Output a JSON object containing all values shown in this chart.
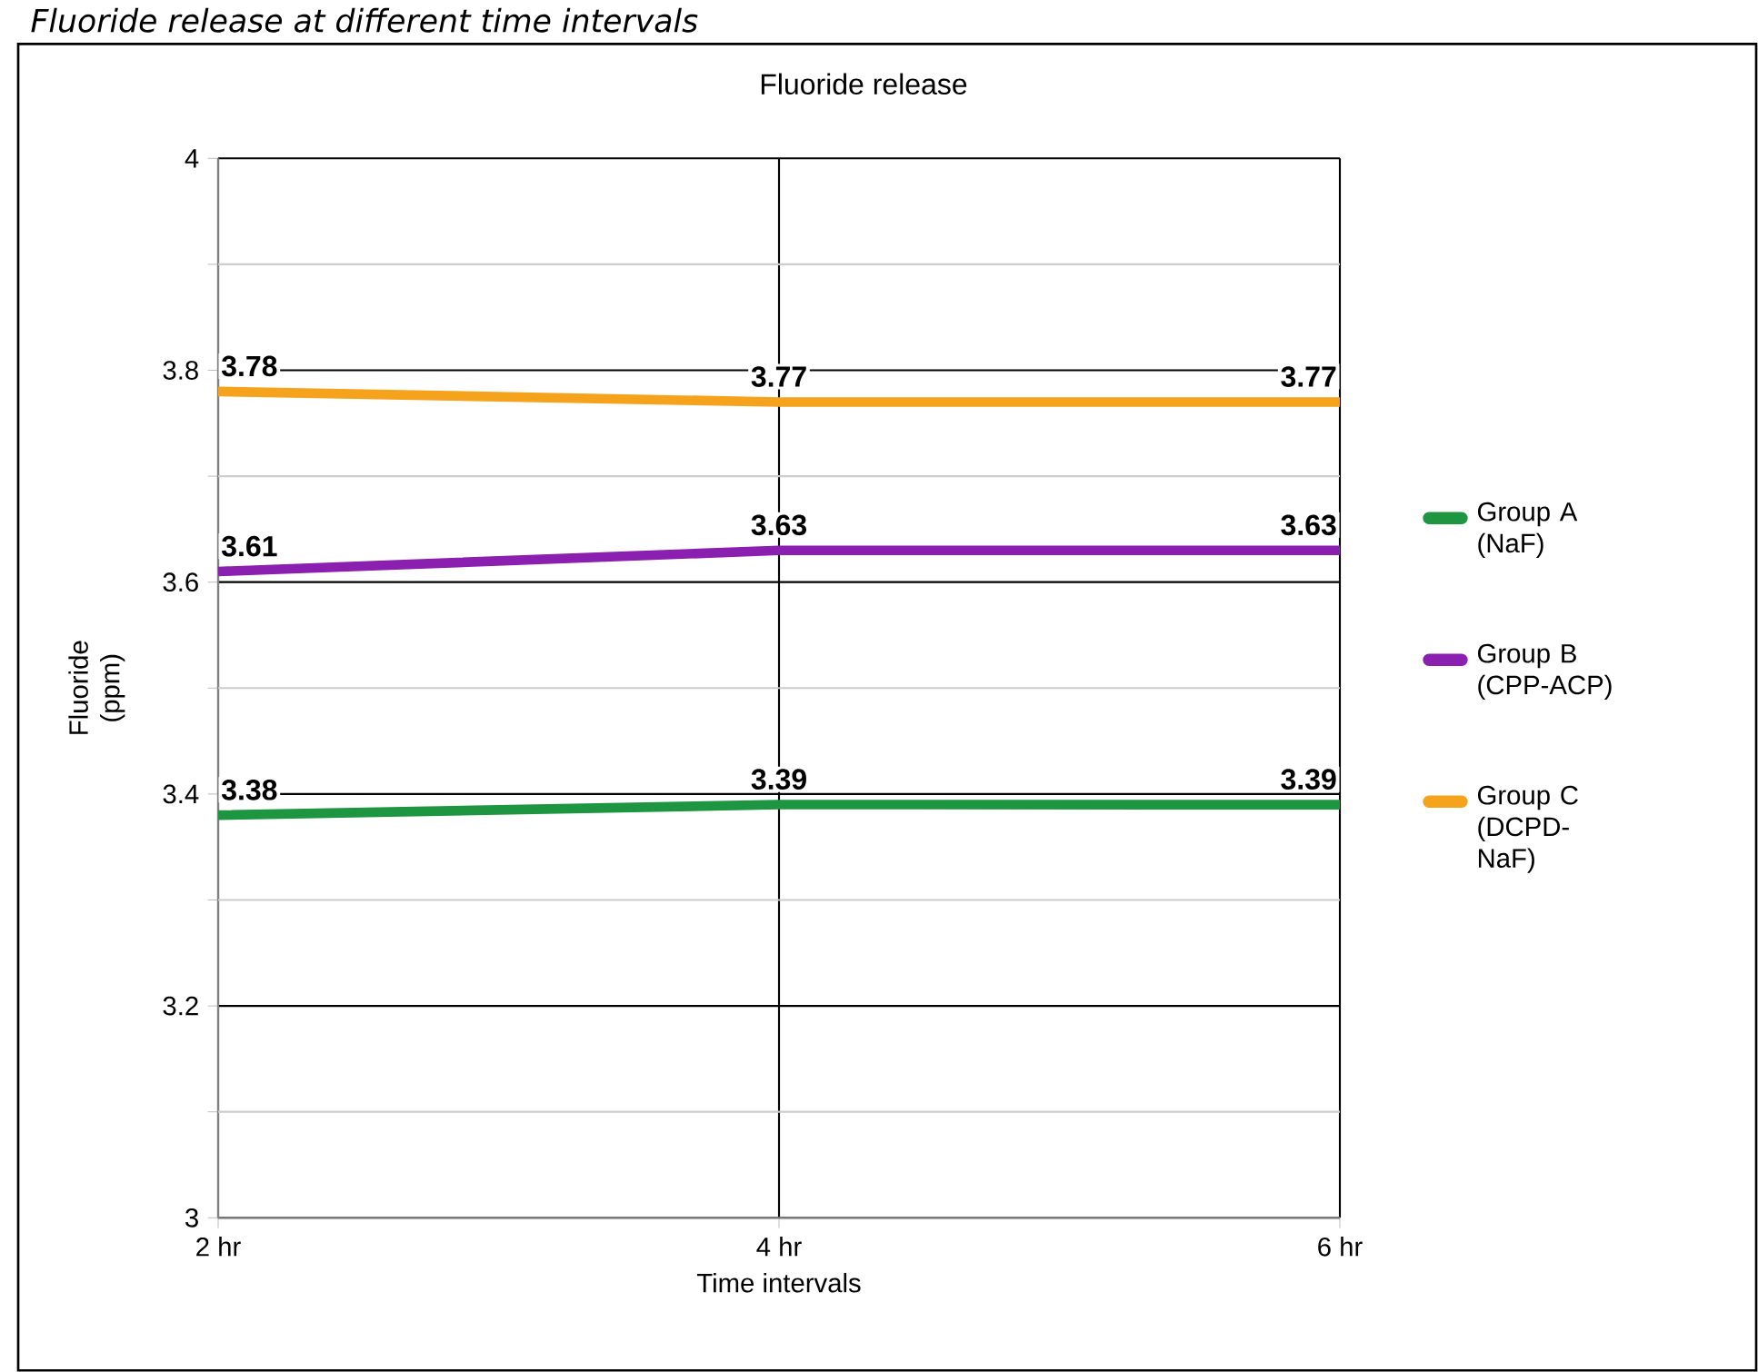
{
  "chart_data": {
    "type": "line",
    "title": "Fluoride release",
    "annotations": [
      "*Fluoride release at different time intervals*"
    ],
    "xlabel": "Time intervals",
    "ylabel": "Fluoride (ppm)",
    "categories": [
      "2 hr",
      "4 hr",
      "6 hr"
    ],
    "series": [
      {
        "name": "Group A (NaF)",
        "color": "#1e9641",
        "values": [
          3.38,
          3.39,
          3.39
        ]
      },
      {
        "name": "Group B (CPP-ACP)",
        "color": "#8a1fb0",
        "values": [
          3.61,
          3.63,
          3.63
        ]
      },
      {
        "name": "Group C (DCPD-NaF)",
        "color": "#f5a31c",
        "values": [
          3.78,
          3.77,
          3.77
        ]
      }
    ],
    "ylim": [
      3,
      4
    ],
    "yticks": [
      3,
      {
        "value": 3.1,
        "label": null
      },
      3.2,
      {
        "value": 3.3,
        "label": null
      },
      3.4,
      {
        "value": 3.5,
        "label": null
      },
      3.6,
      {
        "value": 3.7,
        "label": null
      },
      3.8,
      {
        "value": 3.9,
        "label": null
      },
      4
    ],
    "grid": true,
    "legend": "right",
    "data_labels": true,
    "marker": "none",
    "line_style": "solid"
  }
}
